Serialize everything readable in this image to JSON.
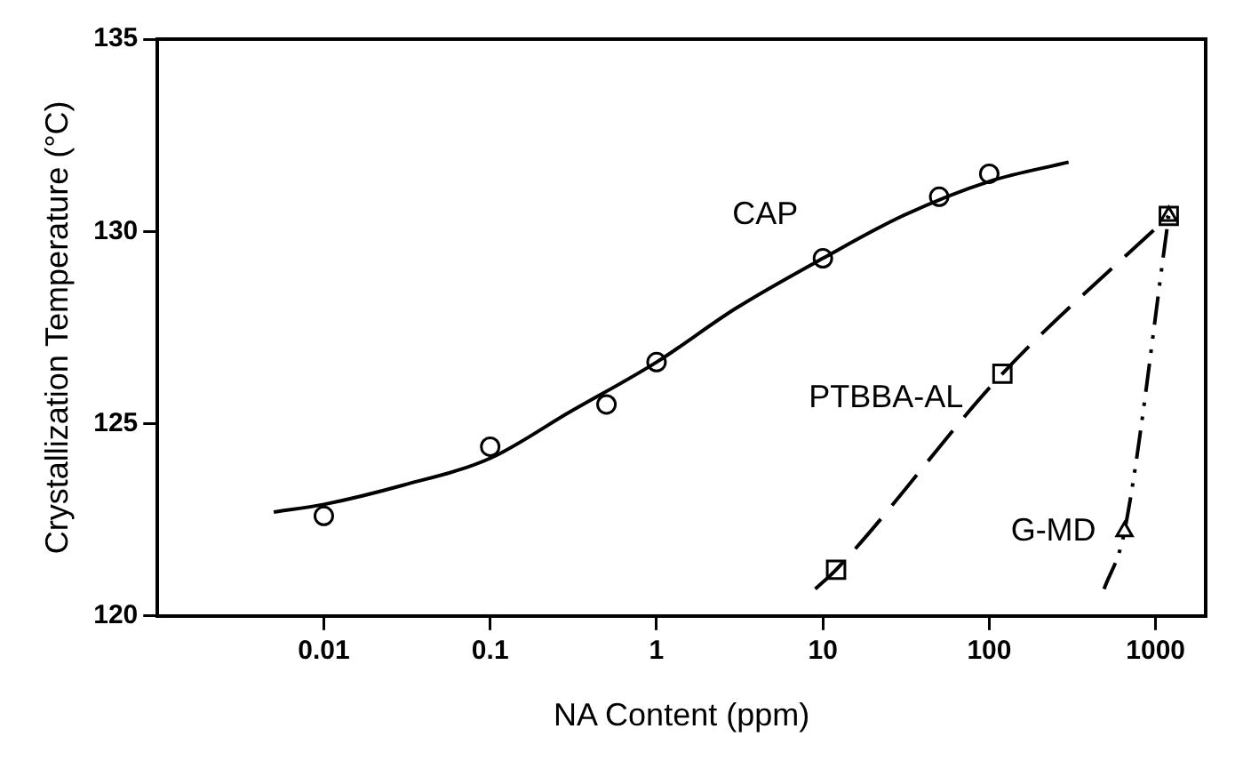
{
  "chart_data": {
    "type": "scatter",
    "xlabel": "NA Content (ppm)",
    "ylabel": "Crystallization Temperature (°C)",
    "log": "x",
    "xlim": [
      0.001,
      2000
    ],
    "xticks": [
      0.01,
      0.1,
      1,
      10,
      100,
      1000
    ],
    "ylim": [
      120,
      135
    ],
    "yticks": [
      120,
      125,
      130,
      135
    ],
    "grid": false,
    "legend": false,
    "series": [
      {
        "name": "CAP",
        "marker": "circle",
        "color": "#000000",
        "x": [
          0.01,
          0.1,
          0.5,
          1,
          10,
          50,
          100
        ],
        "values": [
          122.6,
          124.4,
          125.5,
          126.6,
          129.3,
          130.9,
          131.5
        ]
      },
      {
        "type": "line",
        "marker": "none",
        "line_style": "solid",
        "color": "#000000",
        "x": [
          0.005,
          0.01,
          0.03,
          0.1,
          0.3,
          1,
          3,
          10,
          30,
          100,
          300
        ],
        "values": [
          122.7,
          122.9,
          123.4,
          124.1,
          125.3,
          126.6,
          128.0,
          129.3,
          130.4,
          131.3,
          131.8
        ]
      },
      {
        "name": "PTBBA-AL",
        "marker": "square",
        "color": "#000000",
        "x": [
          12,
          120,
          1200
        ],
        "values": [
          121.2,
          126.3,
          130.4
        ]
      },
      {
        "type": "line",
        "marker": "none",
        "line_style": "dashed",
        "color": "#000000",
        "x": [
          9,
          12,
          120,
          1200
        ],
        "values": [
          120.7,
          121.2,
          126.3,
          130.4
        ]
      },
      {
        "name": "G-MD",
        "marker": "triangle",
        "color": "#000000",
        "x": [
          650,
          1200
        ],
        "values": [
          122.2,
          130.4
        ]
      },
      {
        "type": "line",
        "marker": "none",
        "line_style": "dotted",
        "color": "#000000",
        "x": [
          490,
          650,
          1200
        ],
        "values": [
          120.7,
          122.2,
          130.4
        ]
      }
    ]
  }
}
